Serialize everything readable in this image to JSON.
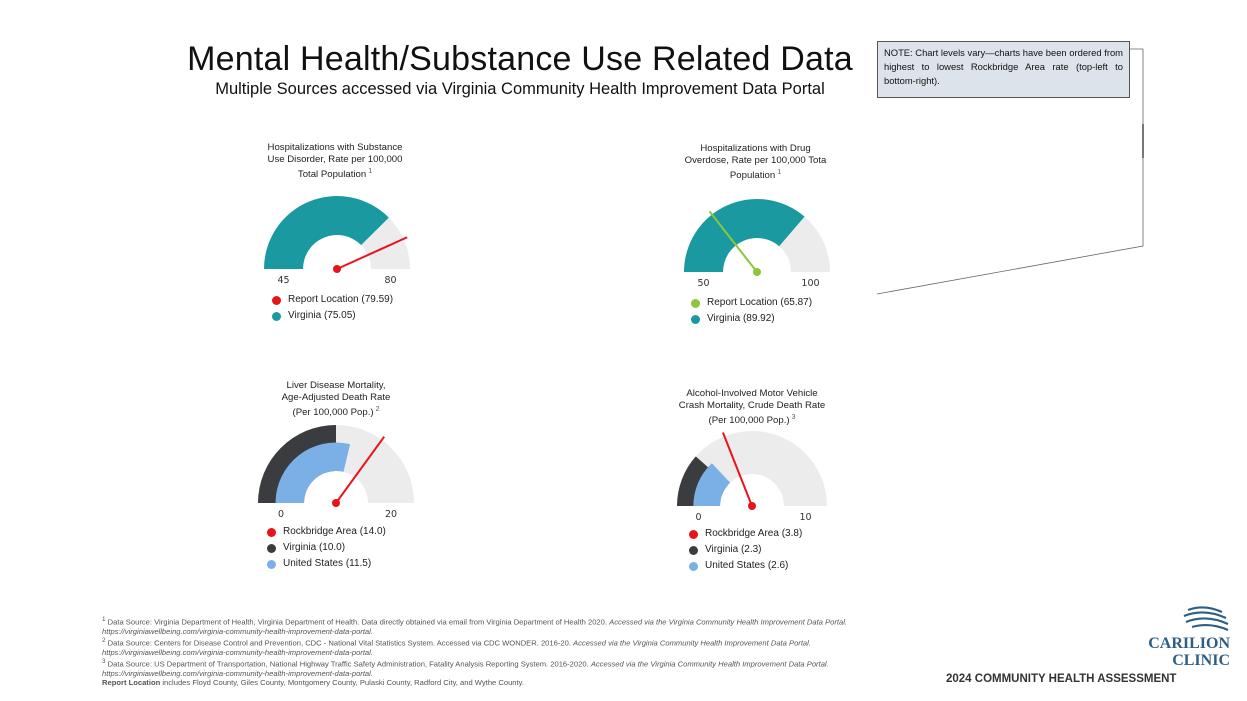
{
  "header": {
    "title": "Mental Health/Substance Use Related Data",
    "subtitle": "Multiple Sources accessed via Virginia Community Health Improvement Data Portal"
  },
  "note": "NOTE:  Chart levels vary—charts have been ordered from highest to lowest Rockbridge Area rate (top-left to bottom-right).",
  "chart_data": [
    {
      "type": "gauge",
      "title": "Hospitalizations with Substance\nUse Disorder, Rate per 100,000\nTotal Population",
      "footnote": "1",
      "range": [
        45,
        85
      ],
      "tick_labels": [
        "45",
        "80"
      ],
      "series": [
        {
          "name": "Virginia",
          "value": 75.05,
          "color": "#1a9aa0",
          "kind": "band"
        },
        {
          "name": "Report Location",
          "value": 79.59,
          "color": "#e8141b",
          "kind": "needle"
        }
      ],
      "legend": [
        {
          "label": "Report Location (79.59)",
          "color": "#e8141b"
        },
        {
          "label": "Virginia (75.05)",
          "color": "#1a9aa0"
        }
      ]
    },
    {
      "type": "gauge",
      "title": "Hospitalizations with Drug\nOverdose, Rate per 100,000 Tota\nPopulation",
      "footnote": "1",
      "range": [
        50,
        105
      ],
      "tick_labels": [
        "50",
        "100"
      ],
      "series": [
        {
          "name": "Virginia",
          "value": 89.92,
          "color": "#1a9aa0",
          "kind": "band"
        },
        {
          "name": "Report Location",
          "value": 65.87,
          "color": "#8cc63f",
          "kind": "needle"
        }
      ],
      "legend": [
        {
          "label": "Report Location (65.87)",
          "color": "#8cc63f"
        },
        {
          "label": "Virginia (89.92)",
          "color": "#1a9aa0"
        }
      ]
    },
    {
      "type": "gauge",
      "title": "Liver Disease Mortality,\nAge-Adjusted Death Rate\n(Per 100,000 Pop.)",
      "footnote": "2",
      "range": [
        0,
        20
      ],
      "tick_labels": [
        "0",
        "20"
      ],
      "series": [
        {
          "name": "Virginia",
          "value": 10.0,
          "color": "#3a3c40",
          "kind": "band"
        },
        {
          "name": "United States",
          "value": 11.5,
          "color": "#7ab0e6",
          "kind": "inner_band"
        },
        {
          "name": "Rockbridge Area",
          "value": 14.0,
          "color": "#e8141b",
          "kind": "needle"
        }
      ],
      "legend": [
        {
          "label": "Rockbridge Area (14.0)",
          "color": "#e8141b"
        },
        {
          "label": "Virginia (10.0)",
          "color": "#3a3c40"
        },
        {
          "label": "United States (11.5)",
          "color": "#7ab0e6"
        }
      ]
    },
    {
      "type": "gauge",
      "title": "Alcohol-Involved Motor Vehicle\nCrash Mortality, Crude Death Rate\n(Per 100,000 Pop.)",
      "footnote": "3",
      "range": [
        0,
        10
      ],
      "tick_labels": [
        "0",
        "10"
      ],
      "series": [
        {
          "name": "Virginia",
          "value": 2.3,
          "color": "#3a3c40",
          "kind": "band"
        },
        {
          "name": "United States",
          "value": 2.6,
          "color": "#7ab0e6",
          "kind": "inner_band"
        },
        {
          "name": "Rockbridge Area",
          "value": 3.8,
          "color": "#e8141b",
          "kind": "needle"
        }
      ],
      "legend": [
        {
          "label": "Rockbridge Area (3.8)",
          "color": "#e8141b"
        },
        {
          "label": "Virginia (2.3)",
          "color": "#3a3c40"
        },
        {
          "label": "United States (2.6)",
          "color": "#7ab0e6"
        }
      ]
    }
  ],
  "footnotes": {
    "f1_plain": "Data Source: Virginia Department of Health, Virginia Department of Health. Data directly obtained via email from Virginia Department of Health 2020.",
    "f1_italic": "Accessed via the Virginia Community Health Improvement Data Portal. https://virginiawellbeing.com/virginia-community-health-improvement-data-portal.",
    "f2_plain": "Data Source: Centers for Disease Control and Prevention, CDC - National Vital Statistics System. Accessed via CDC WONDER. 2016-20.",
    "f2_italic": "Accessed via the Virginia Community Health Improvement Data Portal. https://virginiawellbeing.com/virginia-community-health-improvement-data-portal.",
    "f3_plain": "Data Source: US Department of Transportation, National Highway Traffic Safety Administration, Fatality Analysis Reporting System. 2016-2020.",
    "f3_italic": "Accessed via the Virginia Community Health Improvement Data Portal. https://virginiawellbeing.com/virginia-community-health-improvement-data-portal.",
    "report_location_bold": "Report Location",
    "report_location_text": "includes Floyd County, Giles County, Montgomery County, Pulaski County, Radford City, and Wythe County."
  },
  "branding": {
    "logo_line1": "CARILION",
    "logo_line2": "CLINIC",
    "assessment": "2024 COMMUNITY HEALTH ASSESSMENT"
  }
}
